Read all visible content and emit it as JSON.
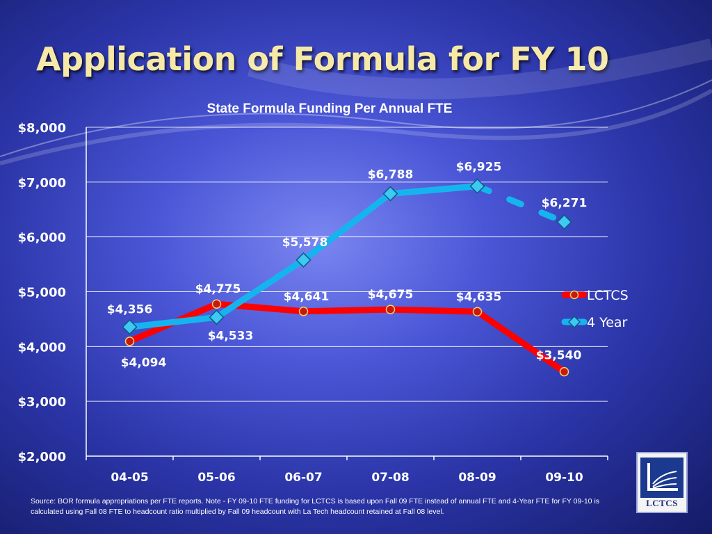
{
  "slide": {
    "title": "Application of Formula for FY 10",
    "source_note": "Source: BOR formula appropriations per FTE reports.  Note - FY 09-10 FTE funding for LCTCS  is based upon Fall 09 FTE instead of annual FTE and 4-Year FTE for FY 09-10 is calculated using Fall 08 FTE to headcount ratio multiplied by Fall 09 headcount with La Tech headcount retained at Fall 08 level.",
    "logo_text": "LCTCS"
  },
  "colors": {
    "lctcs": "#ff0000",
    "four_year": "#16b4ee",
    "title": "#f6e9a8"
  },
  "chart_data": {
    "type": "line",
    "title": "State Formula Funding Per Annual FTE",
    "categories": [
      "04-05",
      "05-06",
      "06-07",
      "07-08",
      "08-09",
      "09-10"
    ],
    "series": [
      {
        "name": "LCTCS",
        "values": [
          4094,
          4775,
          4641,
          4675,
          4635,
          3540
        ],
        "labels": [
          "$4,094",
          "$4,775",
          "$4,641",
          "$4,675",
          "$4,635",
          "$3,540"
        ],
        "color": "#ff0000"
      },
      {
        "name": "4 Year",
        "values": [
          4356,
          4533,
          5578,
          6788,
          6925,
          6271
        ],
        "labels": [
          "$4,356",
          "$4,533",
          "$5,578",
          "$6,788",
          "$6,925",
          "$6,271"
        ],
        "color": "#16b4ee",
        "last_segment_dashed": true
      }
    ],
    "ylim": [
      2000,
      8000
    ],
    "yticks": [
      2000,
      3000,
      4000,
      5000,
      6000,
      7000,
      8000
    ],
    "ytick_labels": [
      "$2,000",
      "$3,000",
      "$4,000",
      "$5,000",
      "$6,000",
      "$7,000",
      "$8,000"
    ],
    "grid": true,
    "legend": "right"
  }
}
